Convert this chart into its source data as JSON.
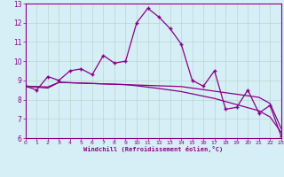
{
  "title": "",
  "xlabel": "Windchill (Refroidissement éolien,°C)",
  "ylabel": "",
  "bg_color": "#d6eef5",
  "line_color": "#880088",
  "grid_color": "#b8d8d0",
  "x": [
    0,
    1,
    2,
    3,
    4,
    5,
    6,
    7,
    8,
    9,
    10,
    11,
    12,
    13,
    14,
    15,
    16,
    17,
    18,
    19,
    20,
    21,
    22,
    23
  ],
  "y_main": [
    8.7,
    8.5,
    9.2,
    9.0,
    9.5,
    9.6,
    9.3,
    10.3,
    9.9,
    10.0,
    12.0,
    12.75,
    12.3,
    11.7,
    10.9,
    9.0,
    8.7,
    9.5,
    7.5,
    7.6,
    8.5,
    7.3,
    7.7,
    6.1
  ],
  "y_trend1": [
    8.7,
    8.68,
    8.66,
    8.9,
    8.88,
    8.86,
    8.84,
    8.82,
    8.8,
    8.78,
    8.76,
    8.74,
    8.72,
    8.7,
    8.68,
    8.6,
    8.52,
    8.44,
    8.36,
    8.28,
    8.2,
    8.12,
    7.8,
    6.5
  ],
  "y_trend2": [
    8.7,
    8.65,
    8.6,
    8.9,
    8.88,
    8.86,
    8.84,
    8.82,
    8.8,
    8.78,
    8.72,
    8.65,
    8.58,
    8.5,
    8.42,
    8.3,
    8.18,
    8.06,
    7.9,
    7.74,
    7.58,
    7.42,
    7.1,
    6.3
  ],
  "xlim": [
    0,
    23
  ],
  "ylim": [
    6,
    13
  ],
  "yticks": [
    6,
    7,
    8,
    9,
    10,
    11,
    12,
    13
  ],
  "xticks": [
    0,
    1,
    2,
    3,
    4,
    5,
    6,
    7,
    8,
    9,
    10,
    11,
    12,
    13,
    14,
    15,
    16,
    17,
    18,
    19,
    20,
    21,
    22,
    23
  ]
}
